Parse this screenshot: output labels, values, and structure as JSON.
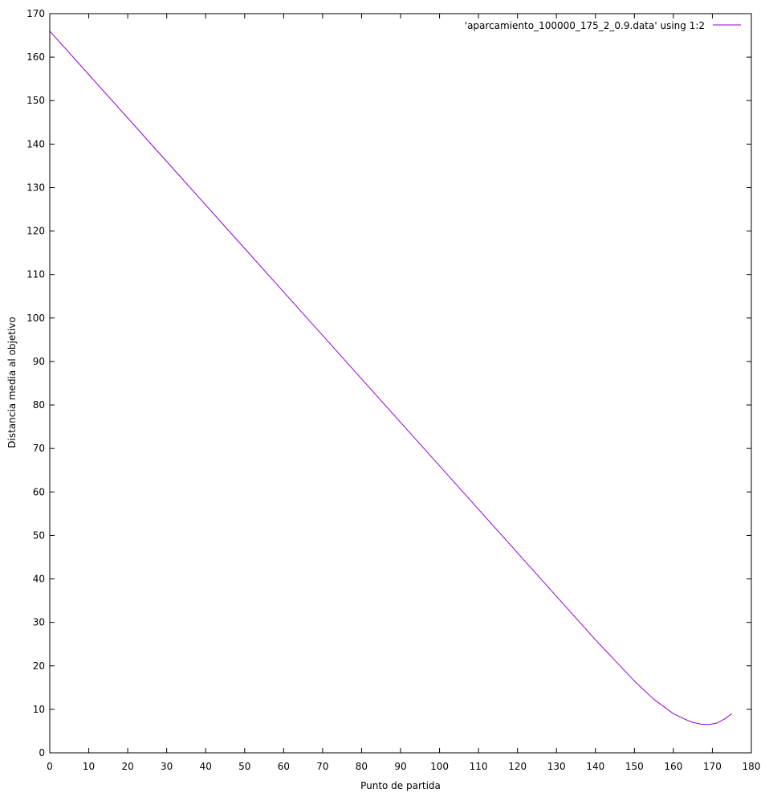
{
  "chart_data": {
    "type": "line",
    "title": "",
    "xlabel": "Punto de partida",
    "ylabel": "Distancia media al objetivo",
    "xlim": [
      0,
      180
    ],
    "ylim": [
      0,
      170
    ],
    "x_ticks": [
      "0",
      "10",
      "20",
      "30",
      "40",
      "50",
      "60",
      "70",
      "80",
      "90",
      "100",
      "110",
      "120",
      "130",
      "140",
      "150",
      "160",
      "170",
      "180"
    ],
    "y_ticks": [
      "0",
      "10",
      "20",
      "30",
      "40",
      "50",
      "60",
      "70",
      "80",
      "90",
      "100",
      "110",
      "120",
      "130",
      "140",
      "150",
      "160",
      "170"
    ],
    "grid": false,
    "legend_position": "top-right",
    "series": [
      {
        "name": "'aparcamiento_100000_175_2_0.9.data' using 1:2",
        "color": "#9400d3",
        "x": [
          0,
          10,
          20,
          30,
          40,
          50,
          60,
          70,
          80,
          90,
          100,
          110,
          120,
          130,
          140,
          150,
          155,
          160,
          163,
          165,
          167,
          169,
          171,
          173,
          175
        ],
        "y": [
          166,
          156,
          146,
          136,
          126,
          116,
          106,
          96,
          86,
          76,
          66,
          56,
          46,
          36,
          26,
          16.5,
          12.3,
          9,
          7.7,
          7.0,
          6.6,
          6.5,
          6.8,
          7.7,
          9.0
        ]
      }
    ]
  }
}
